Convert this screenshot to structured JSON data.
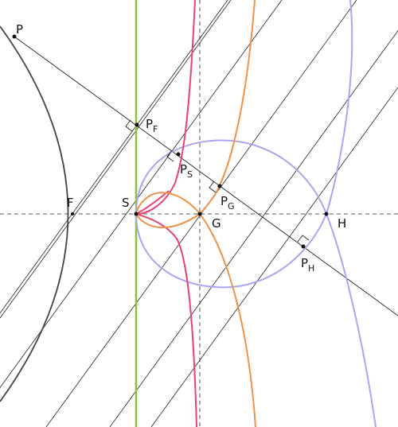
{
  "points": [
    {
      "name": "P"
    },
    {
      "name": "P",
      "subscript": "F"
    },
    {
      "name": "P",
      "subscript": "S"
    },
    {
      "name": "P",
      "subscript": "G"
    },
    {
      "name": "P",
      "subscript": "H"
    },
    {
      "name": "F"
    },
    {
      "name": "S"
    },
    {
      "name": "G"
    },
    {
      "name": "H"
    }
  ]
}
